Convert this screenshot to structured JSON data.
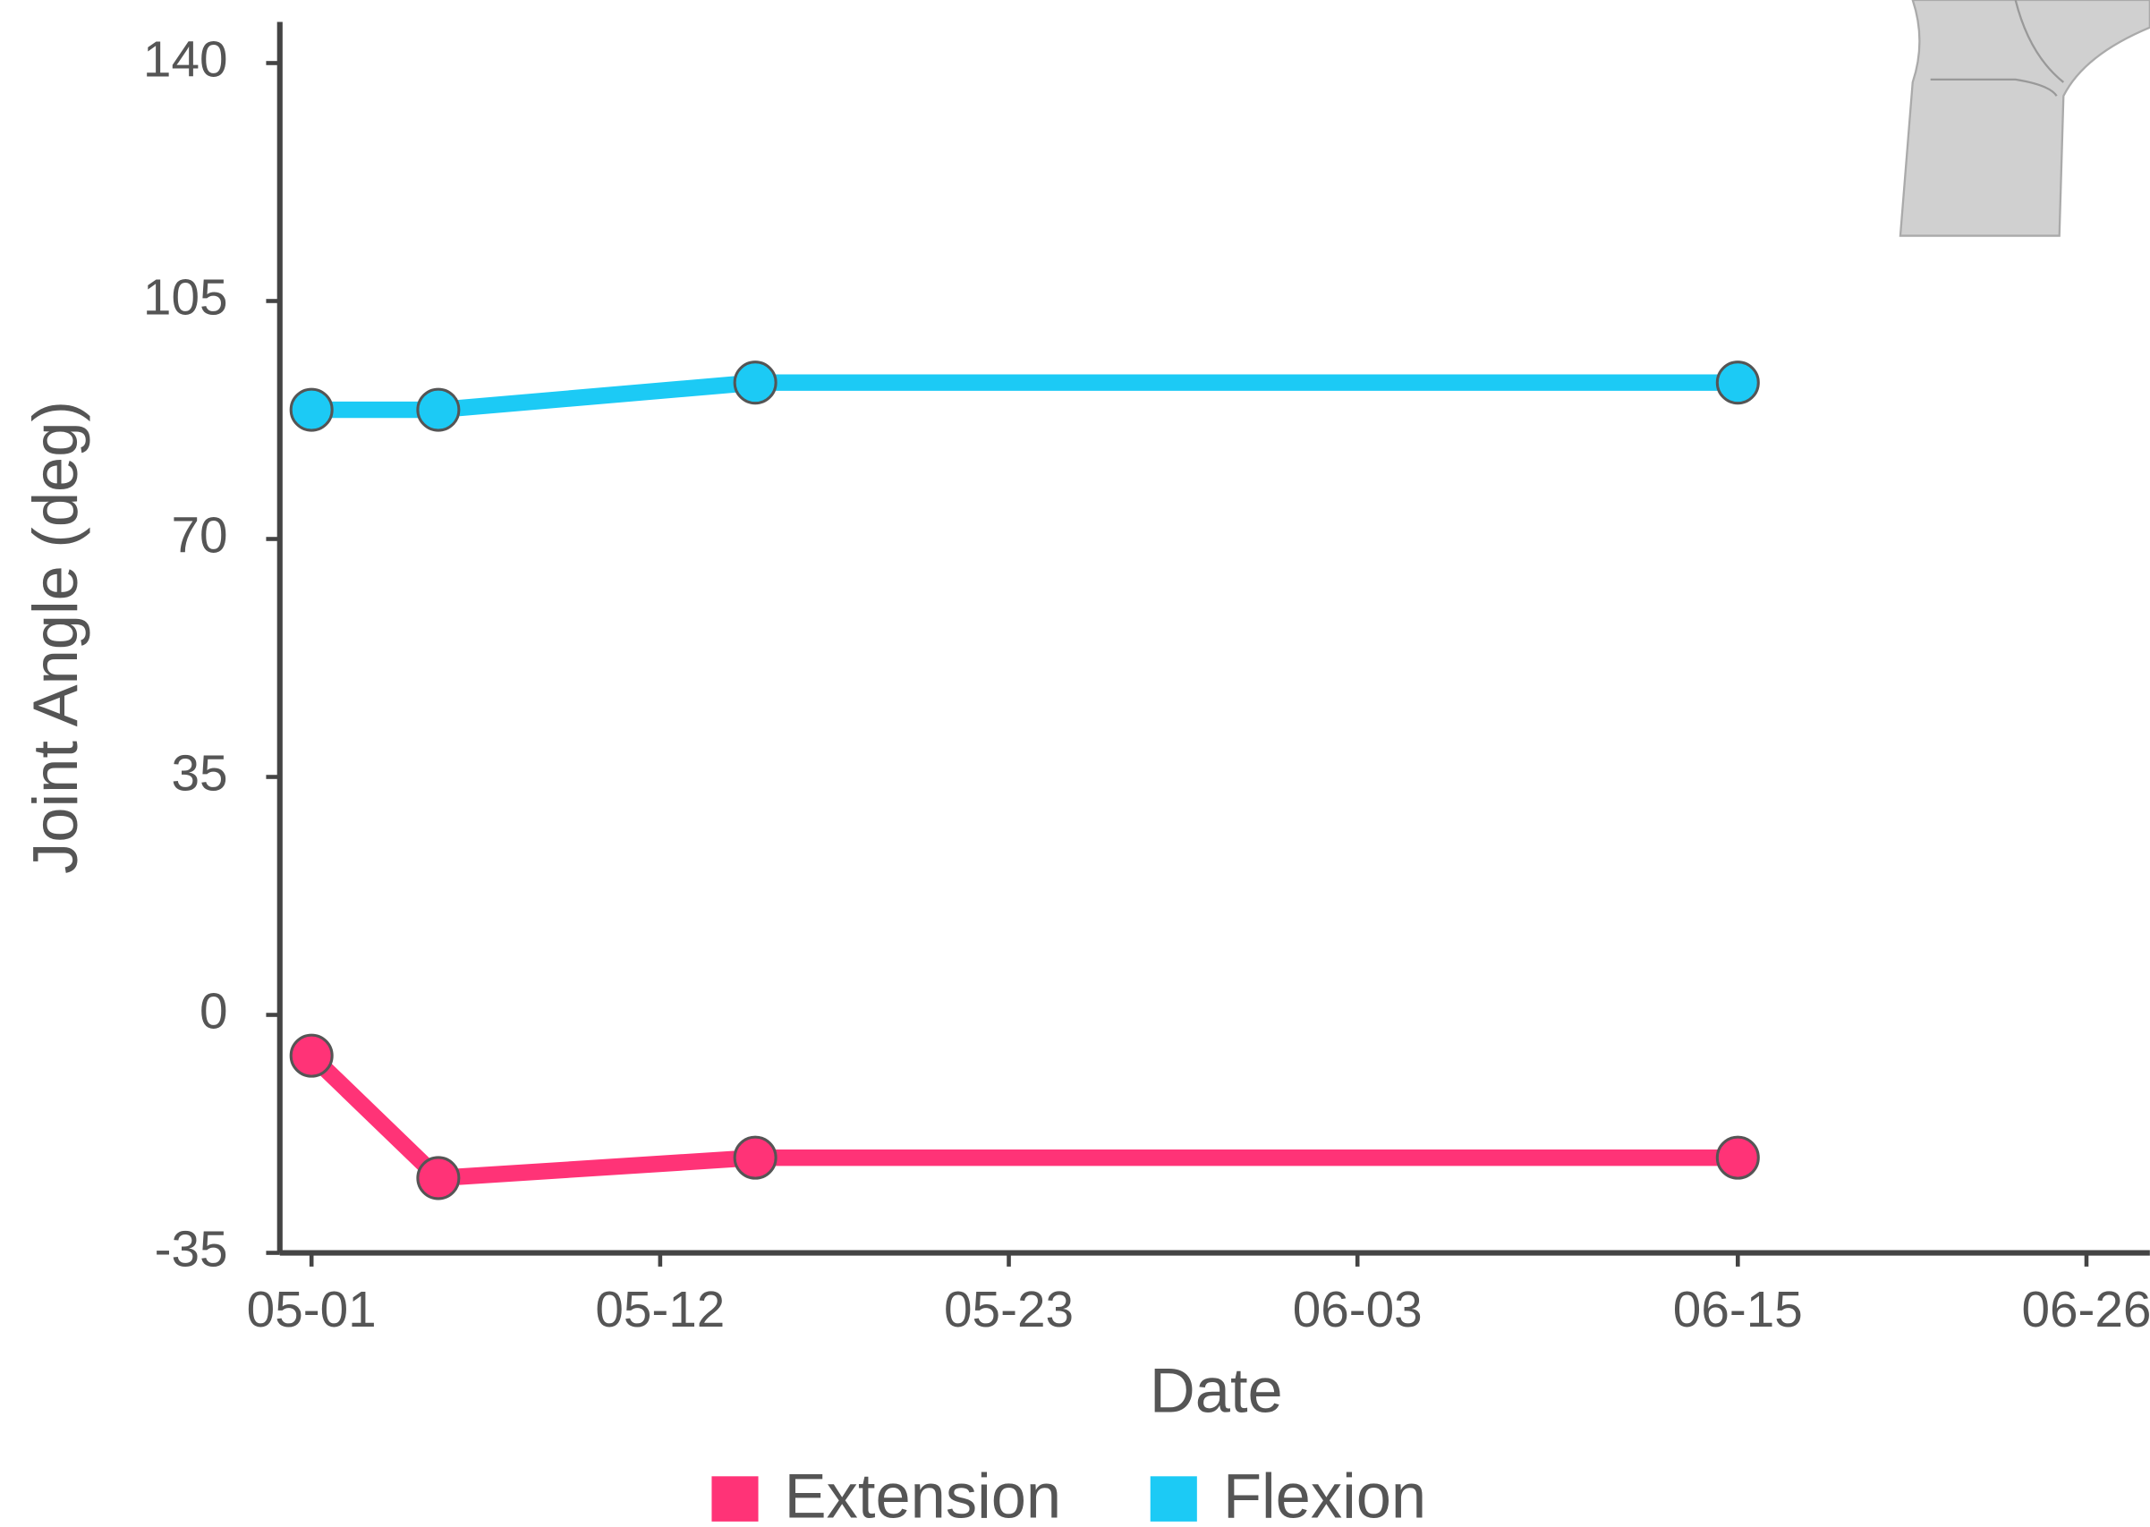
{
  "chart_data": {
    "type": "line",
    "x_label": "Date",
    "y_label": "Joint Angle (deg)",
    "x": [
      "05-01",
      "05-05",
      "05-15",
      "06-15"
    ],
    "series": [
      {
        "name": "Extension",
        "color": "#ff3377",
        "values": [
          -6,
          -24,
          -21,
          -21
        ]
      },
      {
        "name": "Flexion",
        "color": "#1ccaf5",
        "values": [
          89,
          89,
          93,
          93
        ]
      }
    ],
    "xlim": [
      "04-30",
      "06-28"
    ],
    "xticks": [
      "05-01",
      "05-12",
      "05-23",
      "06-03",
      "06-15",
      "06-26"
    ],
    "ylim": [
      -35,
      140
    ],
    "yticks": [
      -35,
      0,
      35,
      70,
      105,
      140
    ],
    "legend": "bottom"
  }
}
